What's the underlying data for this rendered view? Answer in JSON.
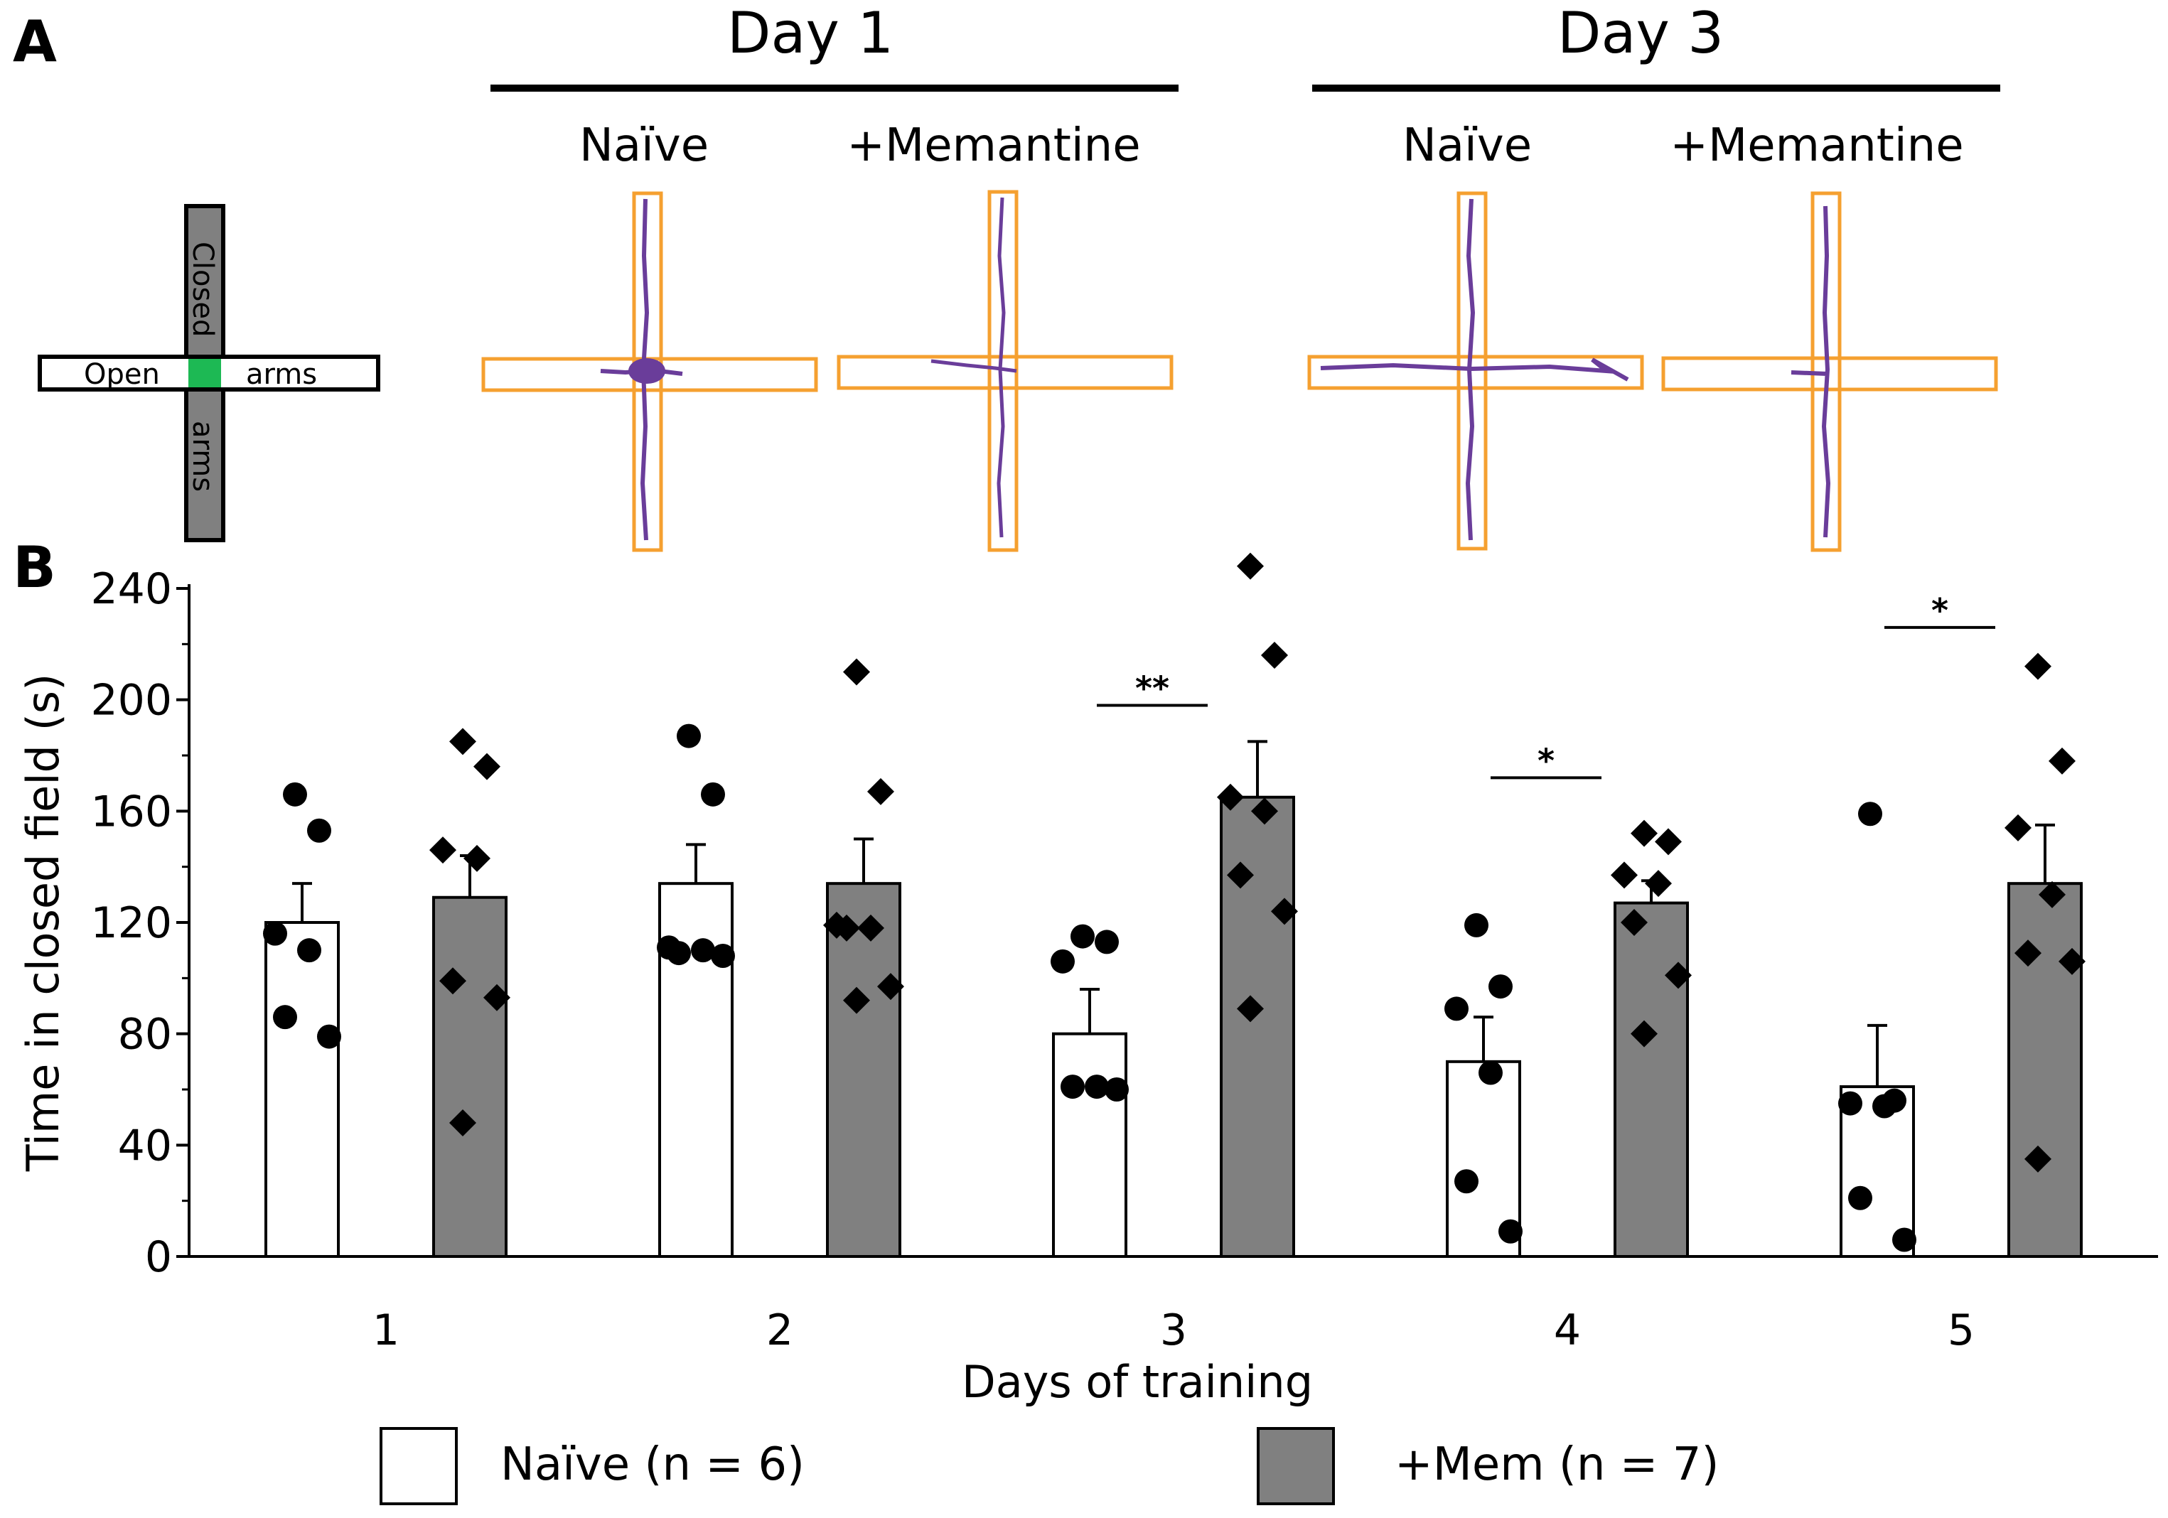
{
  "panel_a": {
    "letter": "A",
    "schematic": {
      "label_closed": "Closed",
      "label_arms_closed": "arms",
      "label_open": "Open",
      "label_arms_open": "arms"
    },
    "groups": [
      {
        "day": "Day 1",
        "conditions": [
          "Naïve",
          "+Memantine"
        ]
      },
      {
        "day": "Day 3",
        "conditions": [
          "Naïve",
          "+Memantine"
        ]
      }
    ],
    "colors": {
      "track": "#6a3d9a",
      "arm_outline": "#f5a030",
      "center": "#1db954",
      "closed_arm": "#808080"
    }
  },
  "panel_b": {
    "letter": "B"
  },
  "chart_data": {
    "type": "bar",
    "categories": [
      "1",
      "2",
      "3",
      "4",
      "5"
    ],
    "xlabel": "Days of training",
    "ylabel": "Time in closed field (s)",
    "ylim": [
      0,
      240
    ],
    "yticks": [
      0,
      40,
      80,
      120,
      160,
      200,
      240
    ],
    "legend": [
      {
        "label": "Naïve (n = 6)",
        "color": "#ffffff"
      },
      {
        "label": "+Mem (n = 7)",
        "color": "#808080"
      }
    ],
    "series": [
      {
        "name": "Naïve (n = 6)",
        "color": "#ffffff",
        "marker": "circle",
        "values": [
          120,
          134,
          80,
          70,
          61
        ],
        "sem": [
          14,
          14,
          16,
          16,
          22
        ],
        "points": [
          [
            166,
            153,
            116,
            110,
            86,
            79
          ],
          [
            187,
            166,
            111,
            110,
            109,
            108
          ],
          [
            115,
            113,
            106,
            61,
            61,
            60
          ],
          [
            119,
            97,
            89,
            66,
            27,
            9
          ],
          [
            159,
            56,
            55,
            54,
            21,
            6
          ]
        ]
      },
      {
        "name": "+Mem (n = 7)",
        "color": "#808080",
        "marker": "diamond",
        "values": [
          129,
          134,
          165,
          127,
          134
        ],
        "sem": [
          15,
          16,
          20,
          8,
          21
        ],
        "points": [
          [
            185,
            176,
            146,
            143,
            99,
            93,
            48
          ],
          [
            210,
            167,
            119,
            118,
            118,
            97,
            92
          ],
          [
            248,
            216,
            165,
            160,
            137,
            124,
            89
          ],
          [
            152,
            149,
            137,
            134,
            120,
            101,
            80
          ],
          [
            212,
            178,
            154,
            130,
            109,
            106,
            35
          ]
        ]
      }
    ],
    "significance": [
      {
        "day": "3",
        "label": "**"
      },
      {
        "day": "4",
        "label": "*"
      },
      {
        "day": "5",
        "label": "*"
      }
    ]
  }
}
